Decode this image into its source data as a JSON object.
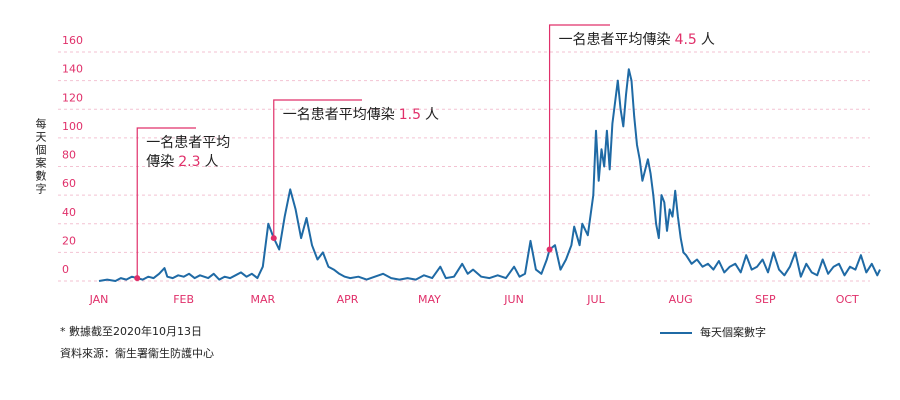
{
  "chart_data": {
    "type": "line",
    "y_label": "每天個案數字",
    "xlim": [
      0,
      286
    ],
    "xticks": [
      {
        "value": 0,
        "label": "JAN"
      },
      {
        "value": 31,
        "label": "FEB"
      },
      {
        "value": 60,
        "label": "MAR"
      },
      {
        "value": 91,
        "label": "APR"
      },
      {
        "value": 121,
        "label": "MAY"
      },
      {
        "value": 152,
        "label": "JUN"
      },
      {
        "value": 182,
        "label": "JUL"
      },
      {
        "value": 213,
        "label": "AUG"
      },
      {
        "value": 244,
        "label": "SEP"
      },
      {
        "value": 274,
        "label": "OCT"
      }
    ],
    "ylim": [
      0,
      160
    ],
    "yticks": [
      0,
      20,
      40,
      60,
      80,
      100,
      120,
      140,
      160
    ],
    "grid": true,
    "series": [
      {
        "name": "每天個案數字",
        "color": "#1f6aa5",
        "x": [
          0,
          3,
          6,
          8,
          10,
          12,
          14,
          16,
          18,
          20,
          22,
          24,
          25,
          27,
          29,
          31,
          33,
          35,
          37,
          40,
          42,
          44,
          46,
          48,
          50,
          52,
          54,
          56,
          58,
          60,
          62,
          64,
          66,
          68,
          70,
          72,
          74,
          76,
          78,
          80,
          82,
          84,
          86,
          88,
          90,
          92,
          95,
          98,
          101,
          104,
          107,
          110,
          113,
          116,
          119,
          122,
          125,
          127,
          130,
          133,
          135,
          137,
          140,
          143,
          146,
          149,
          152,
          154,
          156,
          158,
          160,
          162,
          164,
          165,
          167,
          169,
          171,
          173,
          174,
          176,
          177,
          179,
          181,
          182,
          183,
          184,
          185,
          186,
          187,
          188,
          190,
          191,
          192,
          193,
          194,
          195,
          196,
          197,
          198,
          199,
          201,
          202,
          203,
          204,
          205,
          206,
          207,
          208,
          209,
          210,
          211,
          212,
          213,
          214,
          215,
          217,
          219,
          221,
          223,
          225,
          227,
          229,
          231,
          233,
          235,
          237,
          239,
          241,
          243,
          245,
          247,
          249,
          251,
          253,
          255,
          257,
          259,
          261,
          263,
          265,
          267,
          269,
          271,
          273,
          275,
          277,
          279,
          281,
          283,
          285,
          286
        ],
        "values": [
          0,
          1,
          0,
          2,
          1,
          3,
          2,
          1,
          3,
          2,
          5,
          9,
          3,
          2,
          4,
          3,
          5,
          2,
          4,
          2,
          5,
          1,
          3,
          2,
          4,
          6,
          3,
          5,
          2,
          10,
          40,
          30,
          22,
          45,
          64,
          50,
          30,
          44,
          25,
          15,
          20,
          10,
          8,
          5,
          3,
          2,
          3,
          1,
          3,
          5,
          2,
          1,
          2,
          1,
          4,
          2,
          10,
          2,
          3,
          12,
          5,
          8,
          3,
          2,
          4,
          2,
          10,
          3,
          5,
          28,
          8,
          5,
          15,
          22,
          25,
          8,
          15,
          25,
          38,
          25,
          40,
          32,
          60,
          105,
          70,
          92,
          80,
          105,
          78,
          110,
          140,
          120,
          108,
          130,
          148,
          140,
          115,
          95,
          85,
          70,
          85,
          75,
          60,
          40,
          30,
          60,
          55,
          35,
          50,
          45,
          63,
          45,
          30,
          20,
          18,
          12,
          15,
          10,
          12,
          8,
          14,
          6,
          10,
          12,
          6,
          18,
          8,
          10,
          15,
          6,
          20,
          8,
          4,
          10,
          20,
          3,
          12,
          6,
          4,
          15,
          5,
          10,
          12,
          4,
          10,
          8,
          18,
          6,
          12,
          4,
          8
        ]
      }
    ],
    "annotations": [
      {
        "lines": [
          "一名患者平均",
          "傳染"
        ],
        "r": "2.3",
        "unit": "人",
        "x": 14,
        "y": 2
      },
      {
        "lines": [
          "一名患者平均傳染"
        ],
        "r": "1.5",
        "unit": "人",
        "x": 64,
        "y": 30
      },
      {
        "lines": [
          "一名患者平均傳染"
        ],
        "r": "4.5",
        "unit": "人",
        "x": 165,
        "y": 22
      }
    ],
    "notes": [
      "* 數據截至2020年10月13日",
      "資料來源：衞生署衞生防護中心"
    ]
  }
}
